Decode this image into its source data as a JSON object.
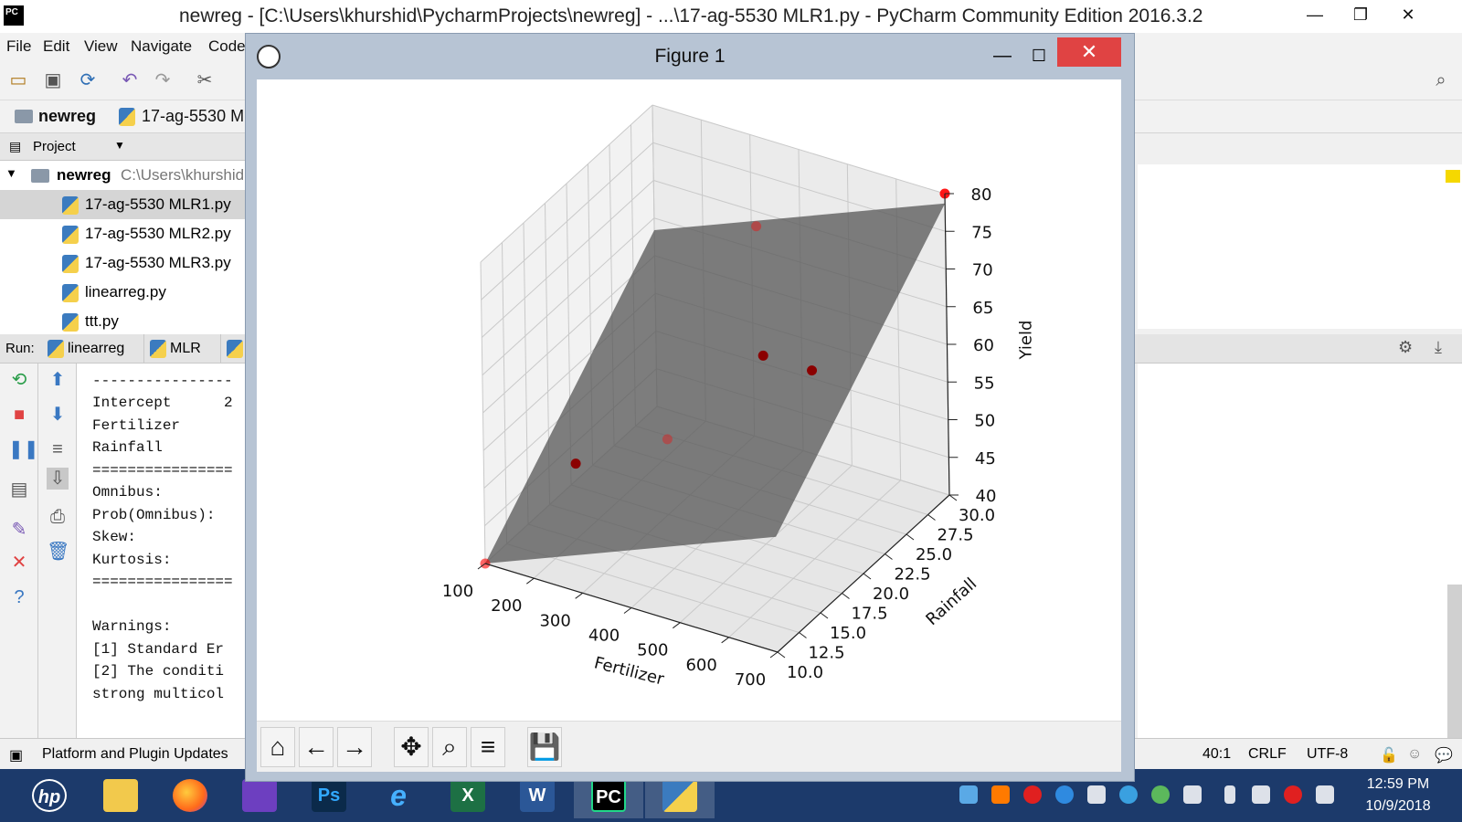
{
  "pycharm": {
    "title": "newreg - [C:\\Users\\khurshid\\PycharmProjects\\newreg] - ...\\17-ag-5530 MLR1.py - PyCharm Community Edition 2016.3.2",
    "logo": "PC",
    "menu": [
      "File",
      "Edit",
      "View",
      "Navigate",
      "Code"
    ],
    "breadcrumb": [
      "newreg",
      "17-ag-5530 M"
    ],
    "project_label": "Project",
    "tree": {
      "root": "newreg",
      "root_path": "C:\\Users\\khurshid",
      "files": [
        "17-ag-5530 MLR1.py",
        "17-ag-5530 MLR2.py",
        "17-ag-5530 MLR3.py",
        "linearreg.py",
        "ttt.py"
      ]
    },
    "run_label": "Run:",
    "run_tabs": [
      "linearreg",
      "MLR"
    ],
    "console_lines": [
      "----------------",
      "Intercept      2",
      "Fertilizer      ",
      "Rainfall        ",
      "================",
      "Omnibus:",
      "Prob(Omnibus):",
      "Skew:",
      "Kurtosis:",
      "================",
      "",
      "Warnings:",
      "[1] Standard Er",
      "[2] The conditi",
      "strong multicol"
    ],
    "status": {
      "left": "Platform and Plugin Updates",
      "position": "40:1",
      "line_sep": "CRLF",
      "encoding": "UTF-8"
    }
  },
  "figure": {
    "title": "Figure 1",
    "toolbar": [
      "home-icon",
      "back-icon",
      "forward-icon",
      "pan-icon",
      "zoom-icon",
      "configure-icon",
      "save-icon"
    ]
  },
  "chart_data": {
    "type": "scatter",
    "projection": "3d",
    "surface": "regression plane",
    "xlabel": "Fertilizer",
    "ylabel": "Rainfall",
    "zlabel": "Yield",
    "xticks": [
      "100",
      "200",
      "300",
      "400",
      "500",
      "600",
      "700"
    ],
    "yticks": [
      "10.0",
      "12.5",
      "15.0",
      "17.5",
      "20.0",
      "22.5",
      "25.0",
      "27.5",
      "30.0"
    ],
    "zticks": [
      "40",
      "45",
      "50",
      "55",
      "60",
      "65",
      "70",
      "75",
      "80"
    ],
    "xlim": [
      100,
      700
    ],
    "ylim": [
      10,
      30
    ],
    "zlim": [
      40,
      80
    ],
    "point_color": "#ff0000",
    "plane_color": "#555555",
    "grid": true
  },
  "taskbar": {
    "apps": [
      "HP",
      "File Explorer",
      "Firefox",
      "Visual Studio",
      "Photoshop",
      "Internet Explorer",
      "Excel",
      "Word",
      "PyCharm",
      "Python"
    ],
    "app_labels": [
      "hp",
      "",
      "",
      "",
      "Ps",
      "e",
      "X",
      "W",
      "PC",
      ""
    ],
    "time": "12:59 PM",
    "date": "10/9/2018"
  }
}
